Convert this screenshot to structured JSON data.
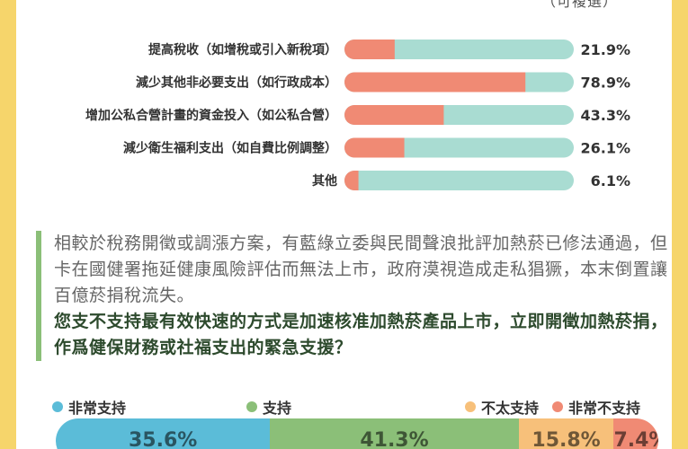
{
  "top_note": "（可複選）",
  "colors": {
    "bar_fill": "#f08a74",
    "bar_track": "#a9dcd2",
    "legend_strong_support": "#5bbcd8",
    "legend_support": "#8bbf78",
    "legend_weak_oppose": "#f7c07a",
    "legend_strong_oppose": "#f08a74"
  },
  "chart_data": [
    {
      "type": "bar",
      "orientation": "horizontal",
      "categories": [
        "提高稅收（如增稅或引入新稅項）",
        "減少其他非必要支出（如行政成本）",
        "增加公私合營計畫的資金投入（如公私合營）",
        "減少衛生福利支出（如自費比例調整）",
        "其他"
      ],
      "values": [
        21.9,
        78.9,
        43.3,
        26.1,
        6.1
      ],
      "value_labels": [
        "21.9%",
        "78.9%",
        "43.3%",
        "26.1%",
        "6.1%"
      ],
      "ylim": [
        0,
        100
      ]
    },
    {
      "type": "bar",
      "orientation": "horizontal-stacked",
      "categories": [
        "非常支持",
        "支持",
        "不太支持",
        "非常不支持"
      ],
      "values": [
        35.6,
        41.3,
        15.8,
        7.4
      ],
      "value_labels": [
        "35.6%",
        "41.3%",
        "15.8%",
        "7.4%"
      ]
    }
  ],
  "question": {
    "context": "相較於稅務開徵或調漲方案，有藍綠立委與民間聲浪批評加熱菸已修法通過，但卡在國健署拖延健康風險評估而無法上市，政府漠視造成走私猖獗，本末倒置讓百億菸捐稅流失。",
    "text": "您支不支持最有效快速的方式是加速核准加熱菸產品上市，立即開徵加熱菸捐，作爲健保財務或社福支出的緊急支援？"
  }
}
